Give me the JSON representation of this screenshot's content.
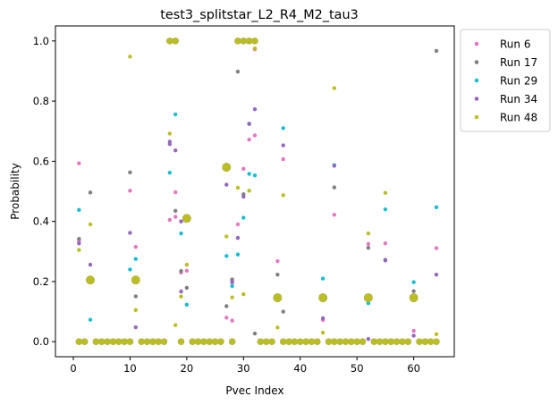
{
  "chart_data": {
    "type": "scatter",
    "title": "test3_splitstar_L2_R4_M2_tau3",
    "xlabel": "Pvec Index",
    "ylabel": "Probability",
    "xlim": [
      -3.15,
      67.15
    ],
    "ylim": [
      -0.05,
      1.05
    ],
    "xticks": [
      0,
      10,
      20,
      30,
      40,
      50,
      60
    ],
    "yticks": [
      0.0,
      0.2,
      0.4,
      0.6,
      0.8,
      1.0
    ],
    "ytick_labels": [
      "0.0",
      "0.2",
      "0.4",
      "0.6",
      "0.8",
      "1.0"
    ],
    "legend_position": "outside-top-right",
    "grid": false,
    "series": [
      {
        "name": "Run 6",
        "color": "#e377c2",
        "points": [
          [
            1,
            0.593
          ],
          [
            1,
            0.335
          ],
          [
            3,
            0.205
          ],
          [
            10,
            0.502
          ],
          [
            11,
            0.315
          ],
          [
            11,
            0.205
          ],
          [
            17,
            0.405
          ],
          [
            18,
            0.497
          ],
          [
            18,
            0.415
          ],
          [
            19,
            0.23
          ],
          [
            20,
            0.41
          ],
          [
            20,
            0.236
          ],
          [
            27,
            0.58
          ],
          [
            27,
            0.08
          ],
          [
            28,
            0.07
          ],
          [
            28,
            0.196
          ],
          [
            29,
            0.39
          ],
          [
            30,
            0.575
          ],
          [
            31,
            0.672
          ],
          [
            32,
            0.686
          ],
          [
            32,
            0.972
          ],
          [
            36,
            0.268
          ],
          [
            36,
            0.146
          ],
          [
            37,
            0.607
          ],
          [
            44,
            0.072
          ],
          [
            44,
            0.146
          ],
          [
            46,
            0.422
          ],
          [
            52,
            0.325
          ],
          [
            52,
            0.146
          ],
          [
            55,
            0.327
          ],
          [
            60,
            0.036
          ],
          [
            60,
            0.146
          ],
          [
            64,
            0.311
          ]
        ]
      },
      {
        "name": "Run 17",
        "color": "#7f7f7f",
        "points": [
          [
            1,
            0.342
          ],
          [
            3,
            0.496
          ],
          [
            3,
            0.205
          ],
          [
            10,
            0.563
          ],
          [
            11,
            0.151
          ],
          [
            11,
            0.205
          ],
          [
            18,
            0.435
          ],
          [
            19,
            0.235
          ],
          [
            20,
            0.179
          ],
          [
            20,
            0.41
          ],
          [
            27,
            0.58
          ],
          [
            27,
            0.118
          ],
          [
            28,
            0.207
          ],
          [
            29,
            0.898
          ],
          [
            30,
            0.49
          ],
          [
            31,
            0.725
          ],
          [
            32,
            0.027
          ],
          [
            36,
            0.223
          ],
          [
            36,
            0.146
          ],
          [
            37,
            0.1
          ],
          [
            44,
            0.146
          ],
          [
            46,
            0.513
          ],
          [
            52,
            0.312
          ],
          [
            52,
            0.146
          ],
          [
            55,
            0.272
          ],
          [
            60,
            0.168
          ],
          [
            60,
            0.146
          ],
          [
            64,
            0.967
          ]
        ]
      },
      {
        "name": "Run 29",
        "color": "#17becf",
        "points": [
          [
            1,
            0.438
          ],
          [
            3,
            0.073
          ],
          [
            3,
            0.205
          ],
          [
            10,
            0.24
          ],
          [
            11,
            0.275
          ],
          [
            11,
            0.205
          ],
          [
            17,
            0.562
          ],
          [
            18,
            0.756
          ],
          [
            19,
            0.36
          ],
          [
            20,
            0.123
          ],
          [
            20,
            0.41
          ],
          [
            27,
            0.285
          ],
          [
            27,
            0.58
          ],
          [
            28,
            0.185
          ],
          [
            29,
            0.29
          ],
          [
            30,
            0.412
          ],
          [
            31,
            0.558
          ],
          [
            32,
            0.553
          ],
          [
            36,
            0.146
          ],
          [
            37,
            0.71
          ],
          [
            44,
            0.21
          ],
          [
            44,
            0.146
          ],
          [
            46,
            0.587
          ],
          [
            52,
            0.128
          ],
          [
            52,
            0.146
          ],
          [
            55,
            0.44
          ],
          [
            60,
            0.198
          ],
          [
            60,
            0.146
          ],
          [
            64,
            0.447
          ]
        ]
      },
      {
        "name": "Run 34",
        "color": "#9467bd",
        "points": [
          [
            1,
            0.327
          ],
          [
            3,
            0.256
          ],
          [
            3,
            0.205
          ],
          [
            10,
            0.362
          ],
          [
            11,
            0.048
          ],
          [
            11,
            0.205
          ],
          [
            17,
            0.665
          ],
          [
            17,
            0.657
          ],
          [
            18,
            0.636
          ],
          [
            19,
            0.167
          ],
          [
            19,
            0.4
          ],
          [
            20,
            0.41
          ],
          [
            27,
            0.522
          ],
          [
            27,
            0.58
          ],
          [
            28,
            0.2
          ],
          [
            29,
            0.345
          ],
          [
            30,
            0.482
          ],
          [
            31,
            0.724
          ],
          [
            32,
            0.773
          ],
          [
            36,
            0.146
          ],
          [
            37,
            0.653
          ],
          [
            44,
            0.078
          ],
          [
            44,
            0.146
          ],
          [
            46,
            0.585
          ],
          [
            52,
            0.009
          ],
          [
            52,
            0.146
          ],
          [
            55,
            0.27
          ],
          [
            60,
            0.02
          ],
          [
            60,
            0.146
          ],
          [
            64,
            0.223
          ]
        ]
      },
      {
        "name": "Run 48",
        "color": "#bcbd22",
        "points": [
          [
            1,
            0.305
          ],
          [
            3,
            0.39
          ],
          [
            3,
            0.205
          ],
          [
            10,
            0.948
          ],
          [
            11,
            0.105
          ],
          [
            11,
            0.205
          ],
          [
            17,
            0.692
          ],
          [
            18,
            0.055
          ],
          [
            19,
            0.15
          ],
          [
            20,
            0.256
          ],
          [
            20,
            0.41
          ],
          [
            27,
            0.35
          ],
          [
            27,
            0.58
          ],
          [
            28,
            0.147
          ],
          [
            29,
            0.512
          ],
          [
            30,
            0.158
          ],
          [
            31,
            0.502
          ],
          [
            32,
            0.975
          ],
          [
            36,
            0.047
          ],
          [
            36,
            0.146
          ],
          [
            37,
            0.487
          ],
          [
            44,
            0.03
          ],
          [
            44,
            0.146
          ],
          [
            46,
            0.843
          ],
          [
            52,
            0.36
          ],
          [
            52,
            0.146
          ],
          [
            55,
            0.495
          ],
          [
            60,
            0.146
          ],
          [
            64,
            0.025
          ]
        ]
      }
    ],
    "saturated_points": {
      "one_indices": [
        17,
        18,
        29,
        30,
        31,
        32
      ],
      "zero_indices": [
        1,
        2,
        4,
        5,
        6,
        7,
        8,
        9,
        10,
        12,
        13,
        14,
        15,
        16,
        19,
        21,
        22,
        23,
        24,
        25,
        26,
        28,
        33,
        34,
        35,
        37,
        38,
        39,
        40,
        41,
        42,
        43,
        45,
        46,
        47,
        48,
        49,
        50,
        51,
        53,
        54,
        55,
        56,
        57,
        58,
        59,
        61,
        62,
        63,
        64
      ]
    }
  }
}
